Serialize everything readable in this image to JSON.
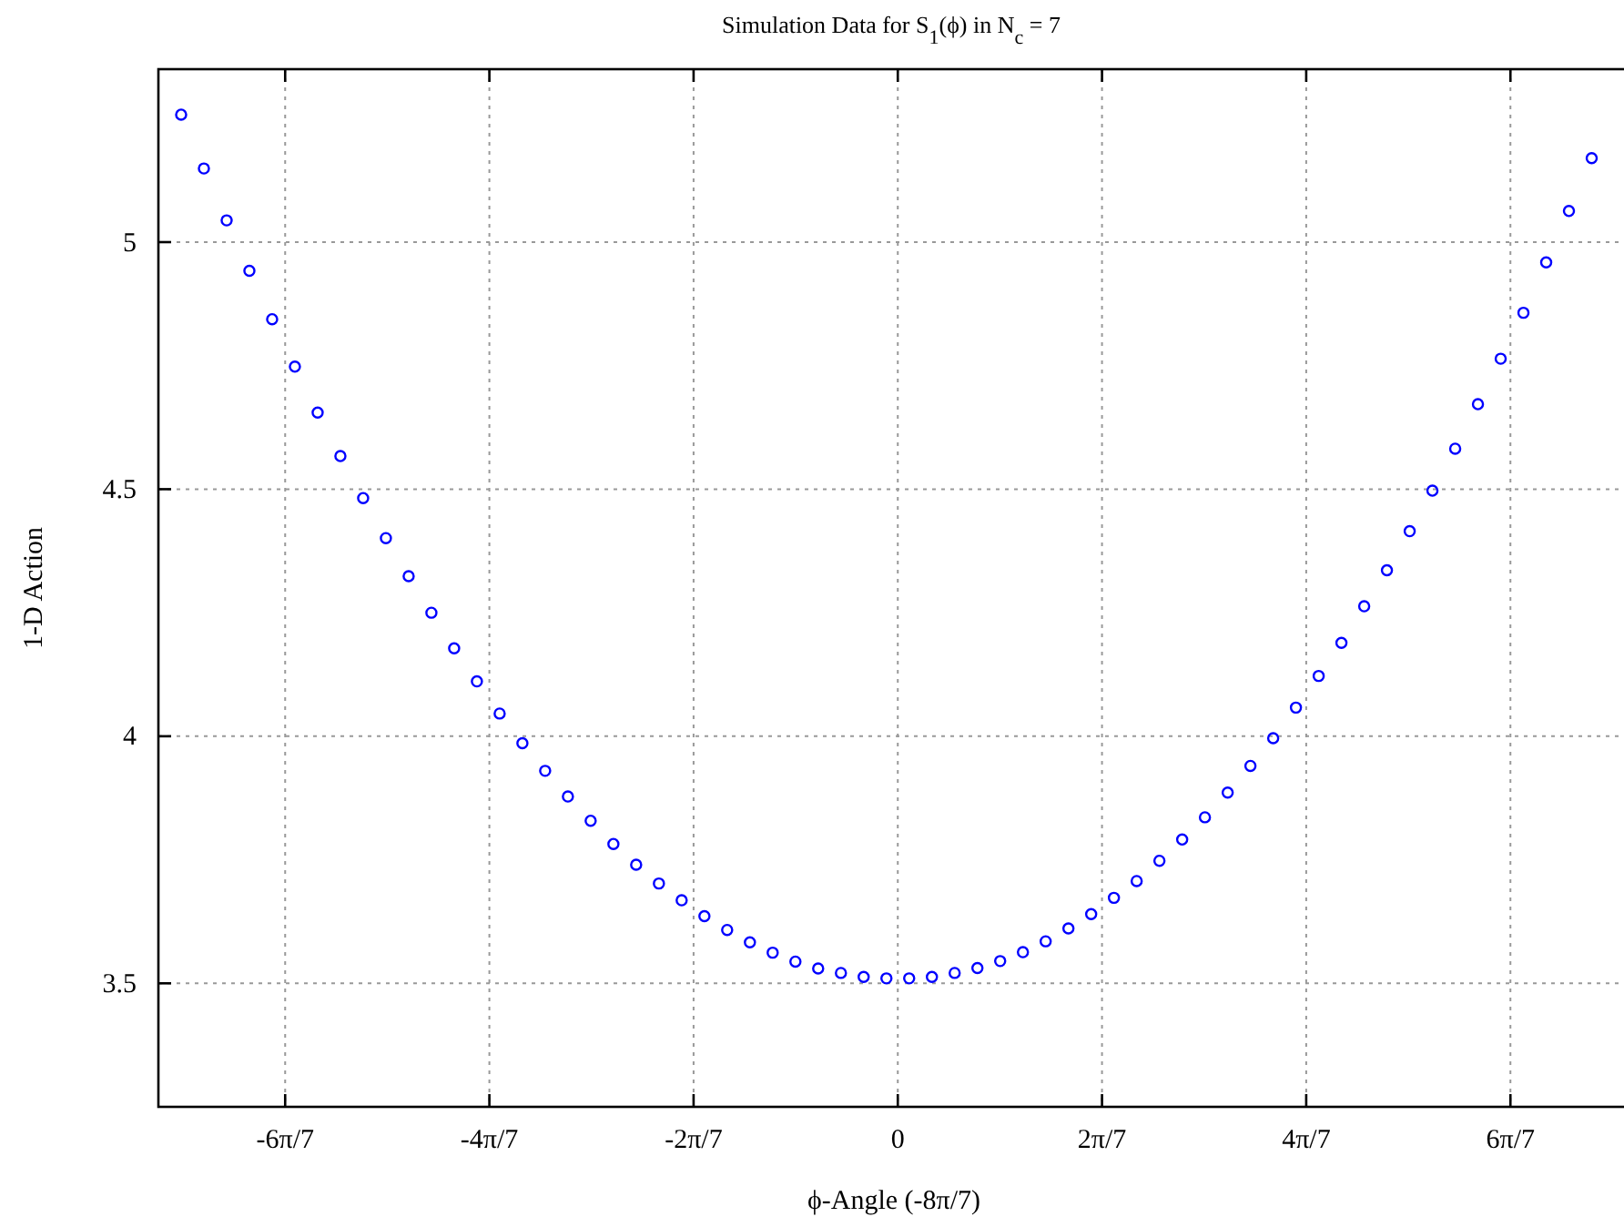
{
  "chart_data": {
    "type": "scatter",
    "title": "Simulation Data for S$_{1}$(ϕ) in N$_{c}$ = 7",
    "xlabel": "ϕ-Angle (-8π/7)",
    "ylabel": "1-D Action",
    "x": [
      -3.15,
      -3.05,
      -2.95,
      -2.85,
      -2.75,
      -2.65,
      -2.55,
      -2.45,
      -2.35,
      -2.25,
      -2.15,
      -2.05,
      -1.95,
      -1.85,
      -1.75,
      -1.65,
      -1.55,
      -1.45,
      -1.35,
      -1.25,
      -1.15,
      -1.05,
      -0.95,
      -0.85,
      -0.75,
      -0.65,
      -0.55,
      -0.45,
      -0.35,
      -0.25,
      -0.15,
      -0.05,
      0.05,
      0.15,
      0.25,
      0.35,
      0.45,
      0.55,
      0.65,
      0.75,
      0.85,
      0.95,
      1.05,
      1.15,
      1.25,
      1.35,
      1.45,
      1.55,
      1.65,
      1.75,
      1.85,
      1.95,
      2.05,
      2.15,
      2.25,
      2.35,
      2.45,
      2.55,
      2.65,
      2.75,
      2.85,
      2.95,
      3.05
    ],
    "series": [
      {
        "color": "#0000ff",
        "values": [
          5.258,
          5.149,
          5.044,
          4.942,
          4.844,
          4.748,
          4.655,
          4.567,
          4.482,
          4.401,
          4.324,
          4.25,
          4.178,
          4.111,
          4.046,
          3.986,
          3.93,
          3.878,
          3.829,
          3.782,
          3.74,
          3.702,
          3.668,
          3.636,
          3.608,
          3.583,
          3.562,
          3.544,
          3.53,
          3.521,
          3.513,
          3.51,
          3.51,
          3.513,
          3.521,
          3.531,
          3.545,
          3.563,
          3.585,
          3.611,
          3.64,
          3.673,
          3.707,
          3.748,
          3.791,
          3.836,
          3.886,
          3.94,
          3.996,
          4.058,
          4.122,
          4.189,
          4.263,
          4.336,
          4.415,
          4.497,
          4.582,
          4.672,
          4.764,
          4.857,
          4.959,
          5.063,
          5.17
        ]
      }
    ],
    "xlim": [
      -3.25,
      3.2
    ],
    "ylim": [
      3.25,
      5.35
    ],
    "xticks": [
      {
        "value": -2.6928,
        "label": "-6π/7"
      },
      {
        "value": -1.7952,
        "label": "-4π/7"
      },
      {
        "value": -0.8976,
        "label": "-2π/7"
      },
      0,
      {
        "value": 0.8976,
        "label": "2π/7"
      },
      {
        "value": 1.7952,
        "label": "4π/7"
      },
      {
        "value": 2.6928,
        "label": "6π/7"
      }
    ],
    "yticks": [
      3.5,
      4,
      4.5,
      5
    ],
    "grid": true,
    "marker": "circle"
  }
}
